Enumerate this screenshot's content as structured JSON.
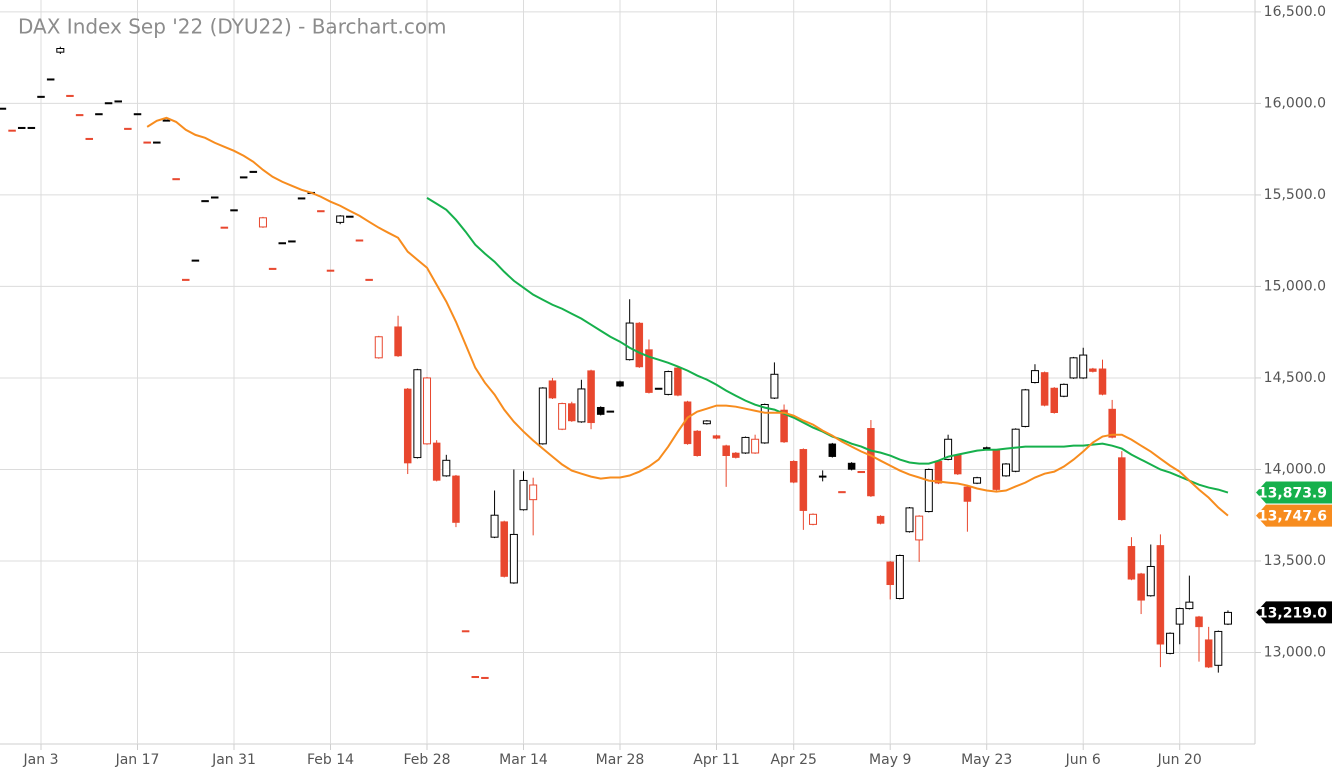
{
  "chart_data": {
    "type": "candlestick",
    "title": "DAX Index Sep '22 (DYU22) - Barchart.com",
    "categories": [
      null,
      null,
      null,
      null,
      "Jan 3",
      null,
      null,
      null,
      null,
      null,
      null,
      null,
      null,
      null,
      "Jan 17",
      null,
      null,
      null,
      null,
      null,
      null,
      null,
      null,
      null,
      "Jan 31",
      null,
      null,
      null,
      null,
      null,
      null,
      null,
      null,
      null,
      "Feb 14",
      null,
      null,
      null,
      null,
      null,
      null,
      null,
      null,
      null,
      "Feb 28",
      null,
      null,
      null,
      null,
      null,
      null,
      null,
      null,
      null,
      "Mar 14",
      null,
      null,
      null,
      null,
      null,
      null,
      null,
      null,
      null,
      "Mar 28",
      null,
      null,
      null,
      null,
      null,
      null,
      null,
      null,
      null,
      "Apr 11",
      null,
      null,
      null,
      null,
      null,
      null,
      null,
      "Apr 25",
      null,
      null,
      null,
      null,
      null,
      null,
      null,
      null,
      null,
      "May 9",
      null,
      null,
      null,
      null,
      null,
      null,
      null,
      null,
      null,
      "May 23",
      null,
      null,
      null,
      null,
      null,
      null,
      null,
      null,
      null,
      "Jun 6",
      null,
      null,
      null,
      null,
      null,
      null,
      null,
      null,
      null,
      "Jun 20",
      null,
      null,
      null,
      null,
      null
    ],
    "open": [
      15975,
      15855,
      15870,
      15870,
      16040,
      16135,
      16280,
      16045,
      15940,
      15810,
      15945,
      16005,
      16015,
      15865,
      15945,
      15790,
      15790,
      15910,
      15590,
      15040,
      15145,
      15470,
      15490,
      15325,
      15420,
      15600,
      15630,
      15325,
      15100,
      15240,
      15250,
      15485,
      15515,
      15415,
      15090,
      15350,
      15385,
      15255,
      15040,
      14610,
      null,
      14780,
      14440,
      14065,
      14140,
      14145,
      13965,
      13965,
      13120,
      12870,
      12865,
      13630,
      13715,
      13380,
      13780,
      13835,
      14140,
      14485,
      14220,
      14360,
      14260,
      14540,
      14340,
      14320,
      14480,
      14600,
      14800,
      14655,
      14445,
      14410,
      14555,
      14370,
      14210,
      14250,
      14185,
      14130,
      14090,
      14090,
      14090,
      14145,
      14390,
      14325,
      14045,
      14110,
      13700,
      13965,
      14140,
      13880,
      14035,
      13990,
      14225,
      13745,
      13495,
      13295,
      13660,
      13615,
      13770,
      14045,
      14055,
      14080,
      13905,
      13925,
      14120,
      14105,
      13965,
      13990,
      14235,
      14475,
      14530,
      14445,
      14400,
      14500,
      14500,
      14550,
      14550,
      14330,
      14065,
      13580,
      13430,
      13310,
      13585,
      12995,
      13155,
      13240,
      13195,
      13070,
      12930,
      13155
    ],
    "high": [
      15975,
      15855,
      15870,
      15870,
      16040,
      16135,
      16310,
      16045,
      15940,
      15810,
      15945,
      16005,
      16015,
      15865,
      15945,
      15790,
      15790,
      15910,
      15590,
      15040,
      15145,
      15470,
      15490,
      15325,
      15420,
      15600,
      15630,
      15380,
      15100,
      15240,
      15250,
      15485,
      15515,
      15415,
      15090,
      15390,
      15385,
      15255,
      15040,
      14730,
      null,
      14840,
      14445,
      14550,
      14505,
      14160,
      14080,
      13970,
      13120,
      12870,
      12865,
      13885,
      13720,
      14000,
      13990,
      13955,
      14450,
      14500,
      14365,
      14370,
      14490,
      14545,
      14345,
      14320,
      14485,
      14930,
      14805,
      14710,
      14445,
      14540,
      14560,
      14375,
      14215,
      14270,
      14190,
      14135,
      14095,
      14180,
      14190,
      14360,
      14585,
      14355,
      14050,
      14115,
      13760,
      13995,
      14145,
      13880,
      14040,
      13990,
      14270,
      13750,
      13500,
      13535,
      13795,
      13750,
      14005,
      14050,
      14190,
      14085,
      13910,
      13960,
      14125,
      14110,
      14035,
      14225,
      14440,
      14575,
      14535,
      14450,
      14470,
      14615,
      14665,
      14555,
      14600,
      14380,
      14100,
      13630,
      13435,
      13590,
      13645,
      13110,
      13245,
      13420,
      13200,
      13140,
      13120,
      13230
    ],
    "low": [
      15975,
      15855,
      15870,
      15870,
      16040,
      16135,
      16270,
      16045,
      15940,
      15810,
      15945,
      16005,
      16015,
      15865,
      15945,
      15790,
      15790,
      15910,
      15590,
      15040,
      15145,
      15470,
      15490,
      15325,
      15420,
      15600,
      15630,
      15320,
      15100,
      15240,
      15250,
      15485,
      15515,
      15415,
      15090,
      15340,
      15385,
      15255,
      15040,
      14605,
      null,
      14615,
      13975,
      14060,
      14135,
      13935,
      13960,
      13685,
      13120,
      12870,
      12865,
      13625,
      13410,
      13375,
      13775,
      13640,
      14135,
      14385,
      14215,
      14260,
      14255,
      14220,
      14295,
      14320,
      14450,
      14595,
      14555,
      14415,
      14445,
      14405,
      14400,
      14135,
      14070,
      14245,
      14165,
      13905,
      14060,
      14085,
      14085,
      14140,
      14385,
      14145,
      13925,
      13670,
      13695,
      13935,
      14065,
      13880,
      13995,
      13990,
      13850,
      13700,
      13290,
      13290,
      13655,
      13495,
      13765,
      13920,
      14050,
      13970,
      13660,
      13920,
      14115,
      13885,
      13960,
      13985,
      14230,
      14470,
      14345,
      14305,
      14395,
      14495,
      14495,
      14530,
      14405,
      14170,
      13720,
      13395,
      13210,
      13305,
      12920,
      12990,
      13045,
      13235,
      12950,
      12915,
      12890,
      13150
    ],
    "close": [
      15975,
      15855,
      15870,
      15870,
      16040,
      16135,
      16300,
      16045,
      15940,
      15810,
      15945,
      16005,
      16015,
      15865,
      15945,
      15790,
      15790,
      15910,
      15590,
      15040,
      15145,
      15470,
      15490,
      15325,
      15420,
      15600,
      15630,
      15375,
      15100,
      15240,
      15250,
      15485,
      15515,
      15415,
      15090,
      15385,
      15385,
      15255,
      15040,
      14725,
      null,
      14620,
      14035,
      14545,
      14500,
      13940,
      14050,
      13710,
      13120,
      12870,
      12865,
      13750,
      13415,
      13645,
      13940,
      13915,
      14445,
      14390,
      14360,
      14265,
      14440,
      14255,
      14300,
      14320,
      14455,
      14800,
      14560,
      14420,
      14445,
      14535,
      14405,
      14140,
      14075,
      14265,
      14170,
      14075,
      14065,
      14175,
      14165,
      14355,
      14520,
      14150,
      13930,
      13775,
      13755,
      13965,
      14070,
      13880,
      14000,
      13990,
      13855,
      13705,
      13370,
      13530,
      13790,
      13745,
      14000,
      13925,
      14165,
      13975,
      13825,
      13955,
      14120,
      13890,
      14030,
      14220,
      14435,
      14540,
      14350,
      14310,
      14465,
      14610,
      14625,
      14535,
      14410,
      14175,
      13725,
      13400,
      13285,
      13470,
      13045,
      13105,
      13240,
      13275,
      13140,
      12920,
      13115,
      13219
    ],
    "close_label": "13,219.0",
    "close_tag_color": "#000000",
    "up_color": "#000000",
    "down_color": "#e8472e",
    "overlays": [
      {
        "color": "#16b04c",
        "last_label": "13,873.9",
        "values": [
          null,
          null,
          null,
          null,
          null,
          null,
          null,
          null,
          null,
          null,
          null,
          null,
          null,
          null,
          null,
          null,
          null,
          null,
          null,
          null,
          null,
          null,
          null,
          null,
          null,
          null,
          null,
          null,
          null,
          null,
          null,
          null,
          null,
          null,
          null,
          null,
          null,
          null,
          null,
          null,
          null,
          null,
          null,
          null,
          15484,
          15452,
          15419,
          15364,
          15299,
          15228,
          15179,
          15135,
          15080,
          15031,
          14993,
          14955,
          14927,
          14900,
          14878,
          14851,
          14824,
          14791,
          14758,
          14725,
          14698,
          14665,
          14638,
          14616,
          14600,
          14583,
          14562,
          14540,
          14513,
          14491,
          14463,
          14431,
          14403,
          14376,
          14354,
          14338,
          14327,
          14305,
          14283,
          14256,
          14229,
          14207,
          14180,
          14163,
          14141,
          14125,
          14103,
          14092,
          14076,
          14054,
          14038,
          14032,
          14032,
          14048,
          14070,
          14081,
          14092,
          14103,
          14108,
          14108,
          14114,
          14119,
          14125,
          14125,
          14125,
          14125,
          14125,
          14130,
          14130,
          14136,
          14141,
          14130,
          14114,
          14081,
          14054,
          14027,
          14000,
          13983,
          13961,
          13939,
          13917,
          13901,
          13890,
          13873.9
        ]
      },
      {
        "color": "#f78c1e",
        "last_label": "13,747.6",
        "values": [
          null,
          null,
          null,
          null,
          null,
          null,
          null,
          null,
          null,
          null,
          null,
          null,
          null,
          null,
          null,
          15872,
          15905,
          15921,
          15899,
          15856,
          15828,
          15812,
          15785,
          15763,
          15741,
          15714,
          15681,
          15637,
          15599,
          15572,
          15550,
          15528,
          15512,
          15490,
          15463,
          15441,
          15413,
          15386,
          15353,
          15321,
          15293,
          15266,
          15190,
          15146,
          15102,
          15009,
          14917,
          14807,
          14682,
          14556,
          14474,
          14409,
          14327,
          14261,
          14207,
          14158,
          14114,
          14070,
          14027,
          13994,
          13977,
          13961,
          13950,
          13956,
          13956,
          13967,
          13988,
          14016,
          14054,
          14125,
          14207,
          14283,
          14316,
          14332,
          14349,
          14349,
          14343,
          14332,
          14321,
          14310,
          14310,
          14310,
          14294,
          14267,
          14245,
          14212,
          14185,
          14152,
          14125,
          14098,
          14076,
          14048,
          14021,
          13994,
          13972,
          13956,
          13939,
          13934,
          13928,
          13923,
          13912,
          13896,
          13885,
          13879,
          13885,
          13907,
          13928,
          13956,
          13977,
          13988,
          14016,
          14054,
          14098,
          14147,
          14180,
          14190,
          14190,
          14163,
          14130,
          14098,
          14059,
          14021,
          13988,
          13939,
          13890,
          13846,
          13792,
          13747.6
        ]
      }
    ],
    "ylim": [
      12500,
      16565
    ],
    "yticks": [
      {
        "value": 13000,
        "label": "13,000.0"
      },
      {
        "value": 13500,
        "label": "13,500.0"
      },
      {
        "value": 14000,
        "label": "14,000.0"
      },
      {
        "value": 14500,
        "label": "14,500.0"
      },
      {
        "value": 15000,
        "label": "15,000.0"
      },
      {
        "value": 15500,
        "label": "15,500.0"
      },
      {
        "value": 16000,
        "label": "16,000.0"
      },
      {
        "value": 16500,
        "label": "16,500.0"
      }
    ],
    "grid": true
  }
}
